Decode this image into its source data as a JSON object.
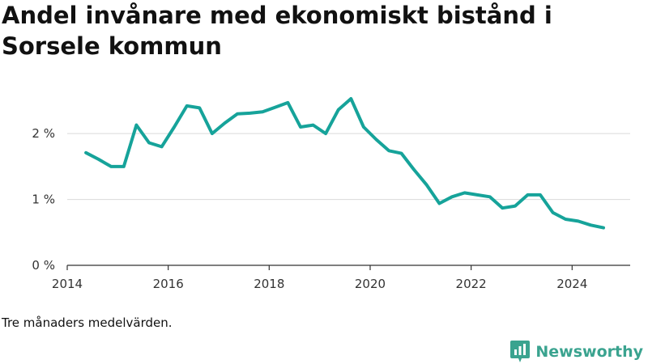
{
  "title": "Andel invånare med ekonomiskt bistånd i Sorsele kommun",
  "note": "Tre månaders medelvärden.",
  "brand": {
    "name": "Newsworthy",
    "color": "#3aa38f",
    "icon": "bar-chart-badge-icon"
  },
  "colors": {
    "line": "#16a39a",
    "grid": "#d9d9d9",
    "axis": "#333333",
    "text": "#333333"
  },
  "chart_data": {
    "type": "line",
    "title": "Andel invånare med ekonomiskt bistånd i Sorsele kommun",
    "xlabel": "",
    "ylabel": "",
    "xlim": [
      2014,
      2025.15
    ],
    "ylim": [
      0,
      2.8
    ],
    "x_ticks": [
      2014,
      2016,
      2018,
      2020,
      2022,
      2024
    ],
    "x_tick_labels": [
      "2014",
      "2016",
      "2018",
      "2020",
      "2022",
      "2024"
    ],
    "y_ticks": [
      0,
      1,
      2
    ],
    "y_tick_labels": [
      "0 %",
      "1 %",
      "2 %"
    ],
    "grid": true,
    "series": [
      {
        "x": [
          2014.37,
          2014.62,
          2014.87,
          2015.12,
          2015.37,
          2015.62,
          2015.87,
          2016.12,
          2016.37,
          2016.62,
          2016.87,
          2017.12,
          2017.37,
          2017.62,
          2017.87,
          2018.12,
          2018.37,
          2018.62,
          2018.87,
          2019.12,
          2019.37,
          2019.62,
          2019.87,
          2020.12,
          2020.37,
          2020.62,
          2020.87,
          2021.12,
          2021.37,
          2021.62,
          2021.87,
          2022.12,
          2022.37,
          2022.62,
          2022.87,
          2023.12,
          2023.37,
          2023.62,
          2023.87,
          2024.12,
          2024.37,
          2024.62
        ],
        "y": [
          1.71,
          1.61,
          1.5,
          1.5,
          2.13,
          1.86,
          1.8,
          2.1,
          2.42,
          2.39,
          2.0,
          2.16,
          2.3,
          2.31,
          2.33,
          2.4,
          2.47,
          2.1,
          2.13,
          2.0,
          2.36,
          2.53,
          2.1,
          1.91,
          1.74,
          1.7,
          1.45,
          1.22,
          0.94,
          1.04,
          1.1,
          1.07,
          1.04,
          0.87,
          0.9,
          1.07,
          1.07,
          0.8,
          0.7,
          0.67,
          0.61,
          0.57
        ]
      }
    ]
  }
}
